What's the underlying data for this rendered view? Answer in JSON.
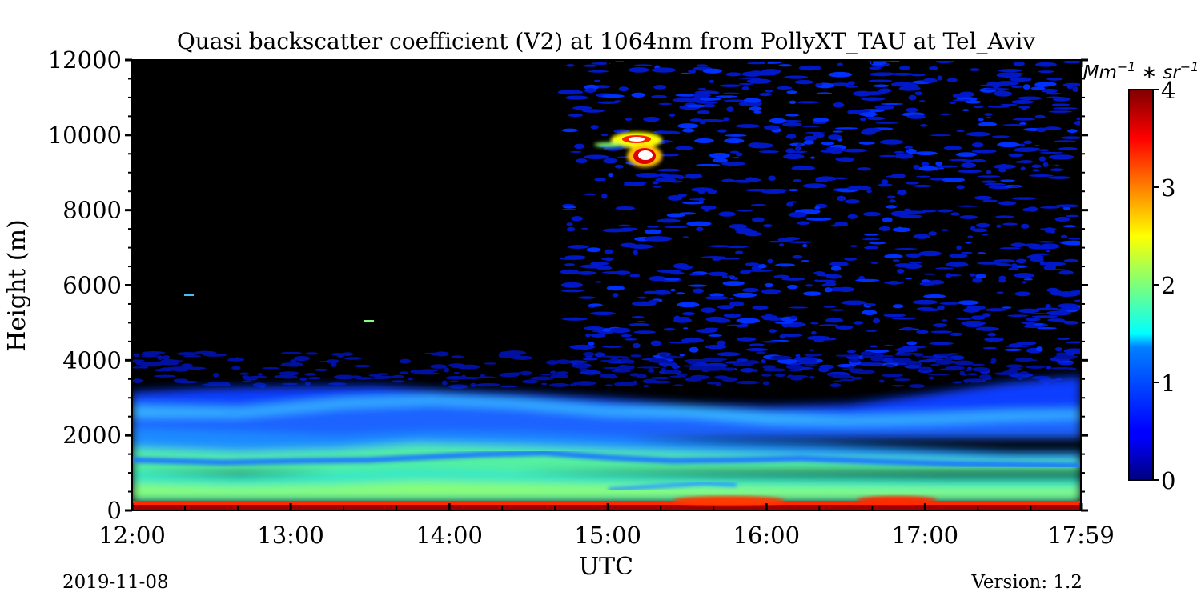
{
  "chart_data": {
    "type": "heatmap",
    "title": "Quasi backscatter coefficient (V2) at 1064nm from PollyXT_TAU at Tel_Aviv",
    "xlabel": "UTC",
    "ylabel": "Height (m)",
    "x_ticks": [
      "12:00",
      "13:00",
      "14:00",
      "15:00",
      "16:00",
      "17:00",
      "17:59"
    ],
    "x_tick_hours": [
      12,
      13,
      14,
      15,
      16,
      17,
      17.983
    ],
    "xlim_hours": [
      12,
      17.983
    ],
    "y_ticks": [
      "0",
      "2000",
      "4000",
      "6000",
      "8000",
      "10000",
      "12000"
    ],
    "y_tick_values": [
      0,
      2000,
      4000,
      6000,
      8000,
      10000,
      12000
    ],
    "ylim": [
      0,
      12000
    ],
    "colorbar": {
      "label": "Mm^-1 * sr^-1",
      "ticks": [
        "0",
        "1",
        "2",
        "3",
        "4"
      ],
      "tick_values": [
        0,
        1,
        2,
        3,
        4
      ],
      "range": [
        0,
        4
      ],
      "colormap": "jet"
    },
    "features": [
      {
        "name": "surface layer",
        "height_m": [
          100,
          250
        ],
        "value": 4
      },
      {
        "name": "lower boundary layer",
        "height_m": [
          250,
          1000
        ],
        "value": 1.7
      },
      {
        "name": "upper boundary layer",
        "height_m": [
          1000,
          1800
        ],
        "value": 2.1
      },
      {
        "name": "aerosol layer top",
        "height_m": [
          1800,
          3200
        ],
        "value": 0.9
      },
      {
        "name": "free troposphere noise",
        "height_m": [
          3500,
          12000
        ],
        "value": 0.2
      },
      {
        "name": "cirrus cloud",
        "time_hours": [
          14.95,
          15.3
        ],
        "height_m": [
          9100,
          10100
        ],
        "value": 4
      },
      {
        "name": "near-surface enhancement",
        "time_hours": [
          15.5,
          16.2
        ],
        "height_m": [
          150,
          400
        ],
        "value": 3.6
      },
      {
        "name": "near-surface enhancement",
        "time_hours": [
          16.6,
          17.1
        ],
        "height_m": [
          150,
          380
        ],
        "value": 3.6
      }
    ]
  },
  "footer": {
    "date": "2019-11-08",
    "version": "Version: 1.2"
  },
  "colors": {
    "background": "#ffffff",
    "no_signal": "#000000"
  }
}
